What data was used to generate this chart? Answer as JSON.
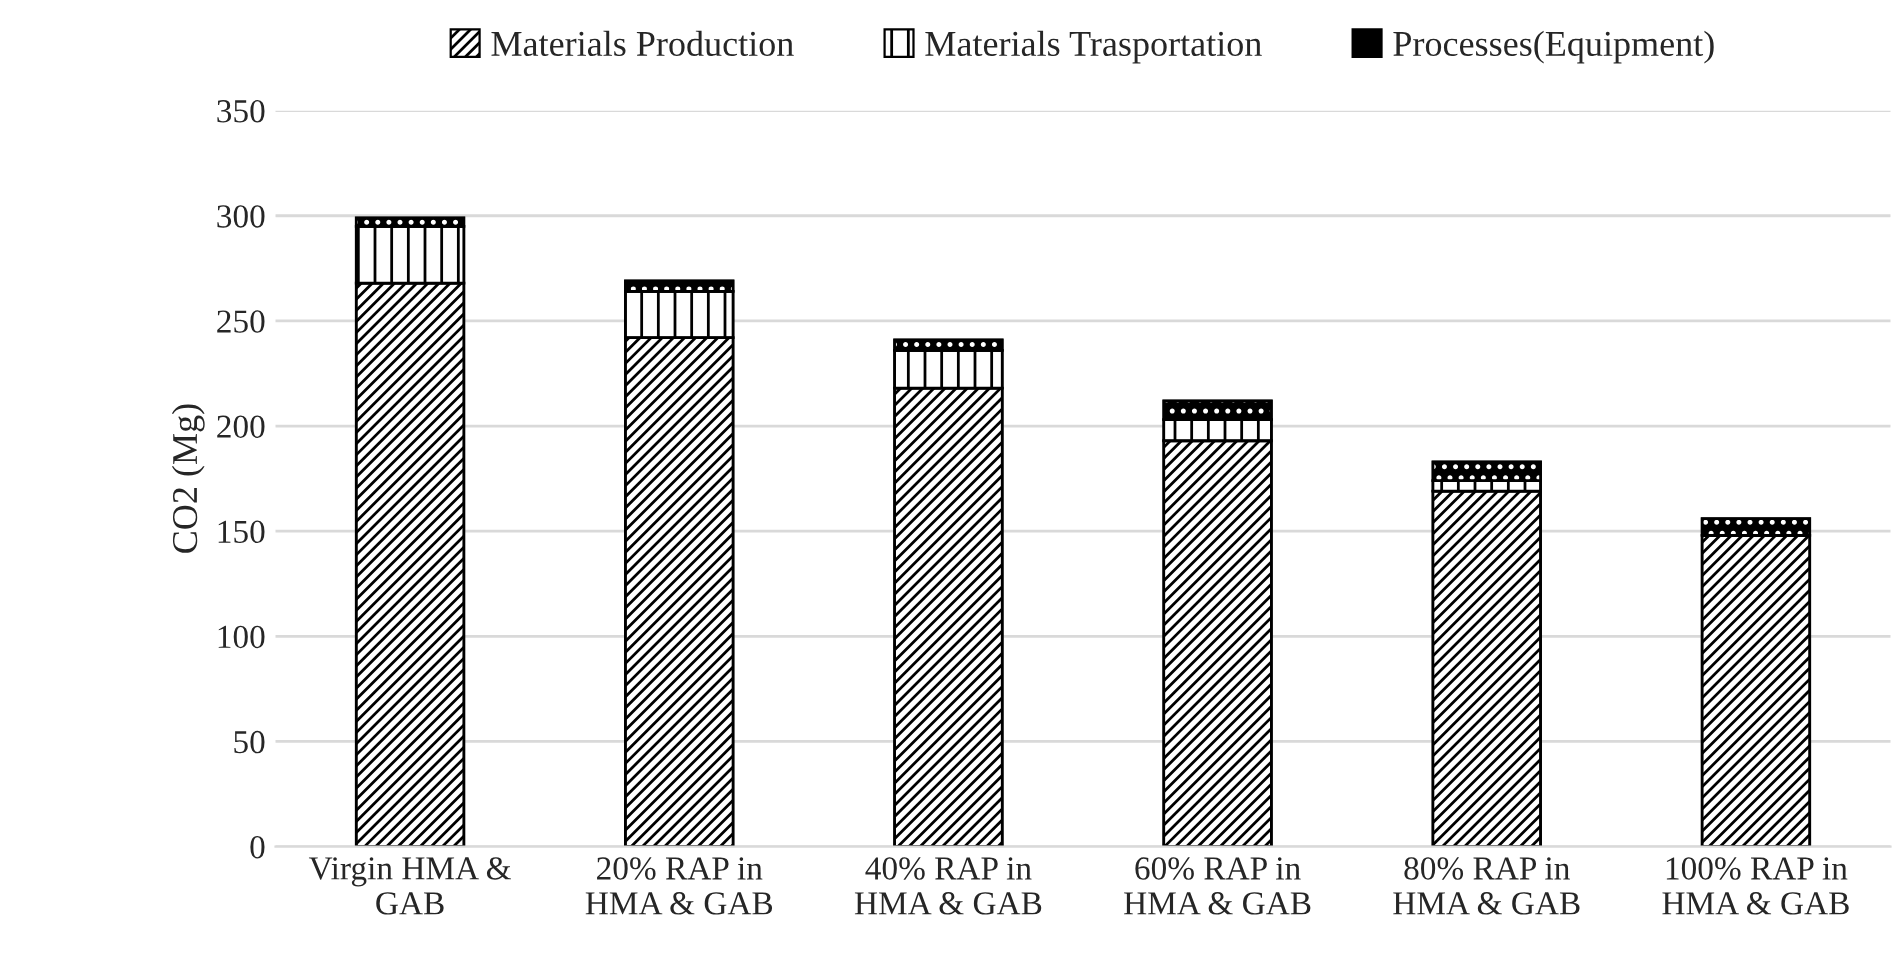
{
  "chart_data": {
    "type": "bar",
    "stacked": true,
    "ylabel": "CO2 (Mg)",
    "categories": [
      "Virgin HMA &\nGAB",
      "20% RAP in\nHMA & GAB",
      "40% RAP in\nHMA & GAB",
      "60% RAP in\nHMA & GAB",
      "80% RAP in\nHMA & GAB",
      "100% RAP in\nHMA & GAB"
    ],
    "series": [
      {
        "name": "Materials Production",
        "color": "#000000",
        "values": [
          268,
          242,
          218,
          193,
          169,
          148
        ]
      },
      {
        "name": "Materials Trasportation",
        "color": "#000000",
        "values": [
          27,
          22,
          18,
          10,
          5,
          0
        ]
      },
      {
        "name": "Processes(Equipment)",
        "color": "#000000",
        "values": [
          4,
          5,
          5,
          9,
          9,
          8
        ]
      }
    ],
    "ylim": [
      0,
      350
    ],
    "yticks": [
      0,
      50,
      100,
      150,
      200,
      250,
      300,
      350
    ],
    "grid": "y",
    "legend": "top"
  }
}
